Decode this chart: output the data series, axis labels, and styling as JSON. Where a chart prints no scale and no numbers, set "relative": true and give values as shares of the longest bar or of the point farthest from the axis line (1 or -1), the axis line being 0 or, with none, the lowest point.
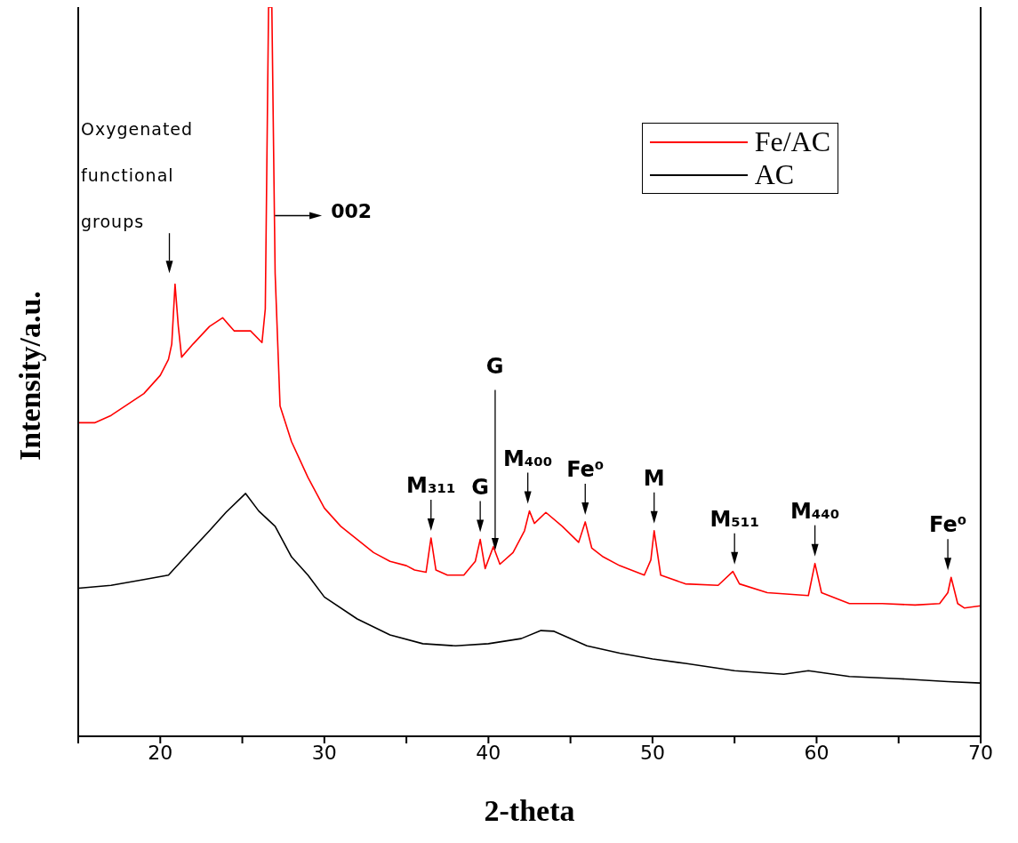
{
  "chart_data": {
    "type": "line",
    "relative": true,
    "xlabel": "2-theta",
    "ylabel": "Intensity/a.u.",
    "xlim": [
      15,
      70
    ],
    "xticks": [
      {
        "value": 15,
        "label": null
      },
      20,
      {
        "value": 25,
        "label": null
      },
      30,
      {
        "value": 35,
        "label": null
      },
      40,
      {
        "value": 45,
        "label": null
      },
      50,
      {
        "value": 55,
        "label": null
      },
      60,
      {
        "value": 65,
        "label": null
      },
      70
    ],
    "legend": "top right",
    "marker": "none",
    "line_style": "solid",
    "series": [
      {
        "name": "Fe/AC",
        "color": "#ff0000",
        "x": [
          15,
          16,
          17,
          18,
          19,
          20,
          20.5,
          20.7,
          20.9,
          21.1,
          21.3,
          22,
          23,
          23.8,
          24.5,
          25.5,
          26.2,
          26.4,
          26.6,
          26.8,
          27,
          27.3,
          28,
          29,
          30,
          31,
          32,
          33,
          34,
          35,
          35.5,
          36.2,
          36.5,
          36.8,
          37.5,
          38.5,
          39.2,
          39.5,
          39.8,
          40.3,
          40.7,
          41.5,
          42.2,
          42.5,
          42.8,
          43.5,
          44.5,
          45.5,
          45.9,
          46.3,
          47,
          48,
          49.5,
          49.9,
          50.1,
          50.5,
          52,
          54,
          54.9,
          55.3,
          57,
          59.5,
          59.9,
          60.3,
          62,
          64,
          66,
          67.5,
          68,
          68.2,
          68.6,
          69,
          70
        ],
        "values": [
          0.43,
          0.43,
          0.44,
          0.455,
          0.47,
          0.495,
          0.517,
          0.538,
          0.62,
          0.562,
          0.52,
          0.538,
          0.562,
          0.574,
          0.556,
          0.556,
          0.54,
          0.586,
          1,
          1,
          0.635,
          0.453,
          0.404,
          0.355,
          0.313,
          0.288,
          0.27,
          0.252,
          0.24,
          0.234,
          0.228,
          0.225,
          0.272,
          0.228,
          0.221,
          0.221,
          0.24,
          0.27,
          0.23,
          0.26,
          0.236,
          0.252,
          0.282,
          0.309,
          0.292,
          0.307,
          0.288,
          0.266,
          0.294,
          0.258,
          0.246,
          0.234,
          0.221,
          0.242,
          0.282,
          0.221,
          0.209,
          0.207,
          0.226,
          0.209,
          0.197,
          0.193,
          0.237,
          0.197,
          0.182,
          0.182,
          0.18,
          0.182,
          0.197,
          0.218,
          0.182,
          0.176,
          0.179
        ]
      },
      {
        "name": "AC",
        "color": "#000000",
        "x": [
          15,
          17,
          19,
          20.5,
          22,
          23,
          24,
          25.2,
          26,
          27,
          28,
          29,
          30,
          32,
          34,
          36,
          38,
          40,
          42,
          43.2,
          44,
          46,
          48,
          50,
          52,
          55,
          58,
          59.5,
          62,
          65,
          68,
          70
        ],
        "values": [
          0.203,
          0.207,
          0.215,
          0.221,
          0.258,
          0.282,
          0.307,
          0.333,
          0.309,
          0.288,
          0.246,
          0.221,
          0.191,
          0.161,
          0.139,
          0.127,
          0.124,
          0.127,
          0.134,
          0.145,
          0.144,
          0.124,
          0.114,
          0.106,
          0.1,
          0.09,
          0.085,
          0.09,
          0.082,
          0.079,
          0.075,
          0.073
        ]
      }
    ],
    "annotations": [
      "Oxygenated functional groups",
      "002",
      {
        "text": "M₃₁₁",
        "x": 36.5,
        "y": 0.272
      },
      {
        "text": "G",
        "x": 39.5,
        "y": 0.27
      },
      "G",
      {
        "text": "M₄₀₀",
        "x": 42.4,
        "y": 0.309
      },
      {
        "text": "Fe⁰",
        "x": 45.9,
        "y": 0.294
      },
      {
        "text": "M",
        "x": 50.1,
        "y": 0.282
      },
      {
        "text": "M₅₁₁",
        "x": 55,
        "y": 0.226
      },
      {
        "text": "M₄₄₀",
        "x": 59.9,
        "y": 0.237
      },
      {
        "text": "Fe⁰",
        "x": 68,
        "y": 0.218
      }
    ]
  }
}
